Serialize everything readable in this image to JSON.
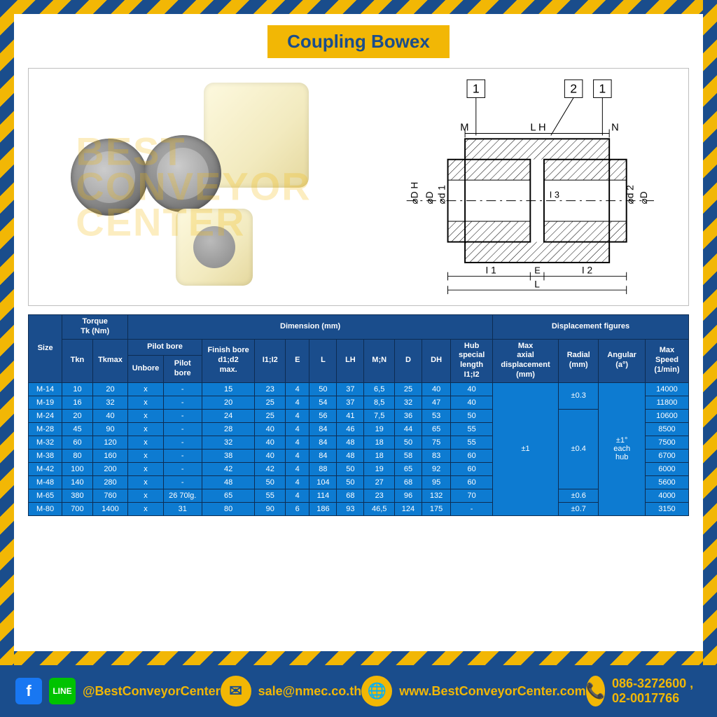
{
  "title": "Coupling Bowex",
  "watermark": "BEST\nCONVEYOR\nCENTER",
  "diagram_labels": {
    "one": "1",
    "two": "2",
    "M": "M",
    "LH": "L H",
    "N": "N",
    "phiDH": "⌀D H",
    "phiD": "⌀D",
    "phid1": "⌀d 1",
    "phid2": "⌀d 2",
    "I1": "I 1",
    "I2": "I 2",
    "I3": "I 3",
    "E": "E",
    "L": "L"
  },
  "table": {
    "group_headers": {
      "torque": "Torque\nTk (Nm)",
      "dimension": "Dimension (mm)",
      "displacement": "Displacement figures"
    },
    "sub_headers": {
      "size": "Size",
      "tkn": "Tkn",
      "tkmax": "Tkmax",
      "pilot_bore_group": "Pilot bore",
      "unbore": "Unbore",
      "pilot_bore": "Pilot\nbore",
      "finish_bore": "Finish bore\nd1;d2\nmax.",
      "i1i2": "I1;I2",
      "E": "E",
      "L": "L",
      "LH": "LH",
      "MN": "M;N",
      "D": "D",
      "DH": "DH",
      "hub_special": "Hub\nspecial\nlength\nI1;I2",
      "max_axial": "Max\naxial\ndisplacement\n(mm)",
      "radial": "Radial\n(mm)",
      "angular": "Angular\n(a°)",
      "max_speed": "Max\nSpeed\n(1/min)"
    },
    "rows": [
      {
        "size": "M-14",
        "tkn": "10",
        "tkmax": "20",
        "unbore": "x",
        "pilot": "-",
        "finish": "15",
        "i1i2": "23",
        "E": "4",
        "L": "50",
        "LH": "37",
        "MN": "6,5",
        "D": "25",
        "DH": "40",
        "hub": "40",
        "speed": "14000"
      },
      {
        "size": "M-19",
        "tkn": "16",
        "tkmax": "32",
        "unbore": "x",
        "pilot": "-",
        "finish": "20",
        "i1i2": "25",
        "E": "4",
        "L": "54",
        "LH": "37",
        "MN": "8,5",
        "D": "32",
        "DH": "47",
        "hub": "40",
        "speed": "11800"
      },
      {
        "size": "M-24",
        "tkn": "20",
        "tkmax": "40",
        "unbore": "x",
        "pilot": "-",
        "finish": "24",
        "i1i2": "25",
        "E": "4",
        "L": "56",
        "LH": "41",
        "MN": "7,5",
        "D": "36",
        "DH": "53",
        "hub": "50",
        "speed": "10600"
      },
      {
        "size": "M-28",
        "tkn": "45",
        "tkmax": "90",
        "unbore": "x",
        "pilot": "-",
        "finish": "28",
        "i1i2": "40",
        "E": "4",
        "L": "84",
        "LH": "46",
        "MN": "19",
        "D": "44",
        "DH": "65",
        "hub": "55",
        "speed": "8500"
      },
      {
        "size": "M-32",
        "tkn": "60",
        "tkmax": "120",
        "unbore": "x",
        "pilot": "-",
        "finish": "32",
        "i1i2": "40",
        "E": "4",
        "L": "84",
        "LH": "48",
        "MN": "18",
        "D": "50",
        "DH": "75",
        "hub": "55",
        "speed": "7500"
      },
      {
        "size": "M-38",
        "tkn": "80",
        "tkmax": "160",
        "unbore": "x",
        "pilot": "-",
        "finish": "38",
        "i1i2": "40",
        "E": "4",
        "L": "84",
        "LH": "48",
        "MN": "18",
        "D": "58",
        "DH": "83",
        "hub": "60",
        "speed": "6700"
      },
      {
        "size": "M-42",
        "tkn": "100",
        "tkmax": "200",
        "unbore": "x",
        "pilot": "-",
        "finish": "42",
        "i1i2": "42",
        "E": "4",
        "L": "88",
        "LH": "50",
        "MN": "19",
        "D": "65",
        "DH": "92",
        "hub": "60",
        "speed": "6000"
      },
      {
        "size": "M-48",
        "tkn": "140",
        "tkmax": "280",
        "unbore": "x",
        "pilot": "-",
        "finish": "48",
        "i1i2": "50",
        "E": "4",
        "L": "104",
        "LH": "50",
        "MN": "27",
        "D": "68",
        "DH": "95",
        "hub": "60",
        "speed": "5600"
      },
      {
        "size": "M-65",
        "tkn": "380",
        "tkmax": "760",
        "unbore": "x",
        "pilot": "26  70lg.",
        "finish": "65",
        "i1i2": "55",
        "E": "4",
        "L": "114",
        "LH": "68",
        "MN": "23",
        "D": "96",
        "DH": "132",
        "hub": "70",
        "speed": "4000"
      },
      {
        "size": "M-80",
        "tkn": "700",
        "tkmax": "1400",
        "unbore": "x",
        "pilot": "31",
        "finish": "80",
        "i1i2": "90",
        "E": "6",
        "L": "186",
        "LH": "93",
        "MN": "46,5",
        "D": "124",
        "DH": "175",
        "hub": "-",
        "speed": "3150"
      }
    ],
    "merged": {
      "max_axial": "±1",
      "radial_1": "±0.3",
      "radial_2": "±0.4",
      "radial_3": "±0.6",
      "radial_4": "±0.7",
      "angular": "±1°\neach\nhub"
    },
    "colors": {
      "header_bg": "#1a4d8c",
      "cell_bg": "#0d7bd1",
      "border": "#0d2c52",
      "text": "#ffffff"
    }
  },
  "footer": {
    "handle": "@BestConveyorCenter",
    "email": "sale@nmec.co.th",
    "website": "www.BestConveyorCenter.com",
    "phones": "086-3272600 , 02-0017766"
  }
}
